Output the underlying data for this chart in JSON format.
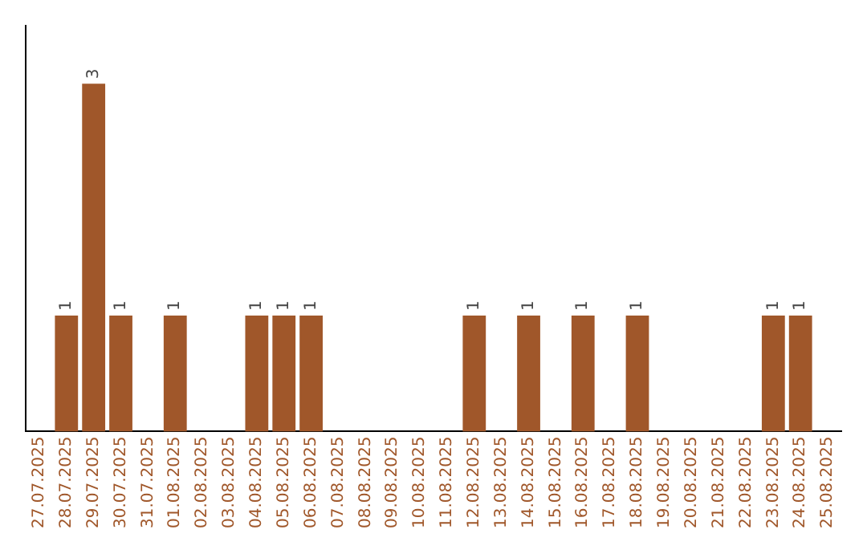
{
  "chart_data": {
    "type": "bar",
    "categories": [
      "27.07.2025",
      "28.07.2025",
      "29.07.2025",
      "30.07.2025",
      "31.07.2025",
      "01.08.2025",
      "02.08.2025",
      "03.08.2025",
      "04.08.2025",
      "05.08.2025",
      "06.08.2025",
      "07.08.2025",
      "08.08.2025",
      "09.08.2025",
      "10.08.2025",
      "11.08.2025",
      "12.08.2025",
      "13.08.2025",
      "14.08.2025",
      "15.08.2025",
      "16.08.2025",
      "17.08.2025",
      "18.08.2025",
      "19.08.2025",
      "20.08.2025",
      "21.08.2025",
      "22.08.2025",
      "23.08.2025",
      "24.08.2025",
      "25.08.2025"
    ],
    "values": [
      0,
      1,
      3,
      1,
      0,
      1,
      0,
      0,
      1,
      1,
      1,
      0,
      0,
      0,
      0,
      0,
      1,
      0,
      1,
      0,
      1,
      0,
      1,
      0,
      0,
      0,
      0,
      1,
      1,
      0
    ],
    "value_labels": [
      null,
      "1",
      "3",
      "1",
      null,
      "1",
      null,
      null,
      "1",
      "1",
      "1",
      null,
      null,
      null,
      null,
      null,
      "1",
      null,
      "1",
      null,
      "1",
      null,
      "1",
      null,
      null,
      null,
      null,
      "1",
      "1",
      null
    ],
    "color": "#a0572a",
    "grid": false,
    "legend": false
  }
}
